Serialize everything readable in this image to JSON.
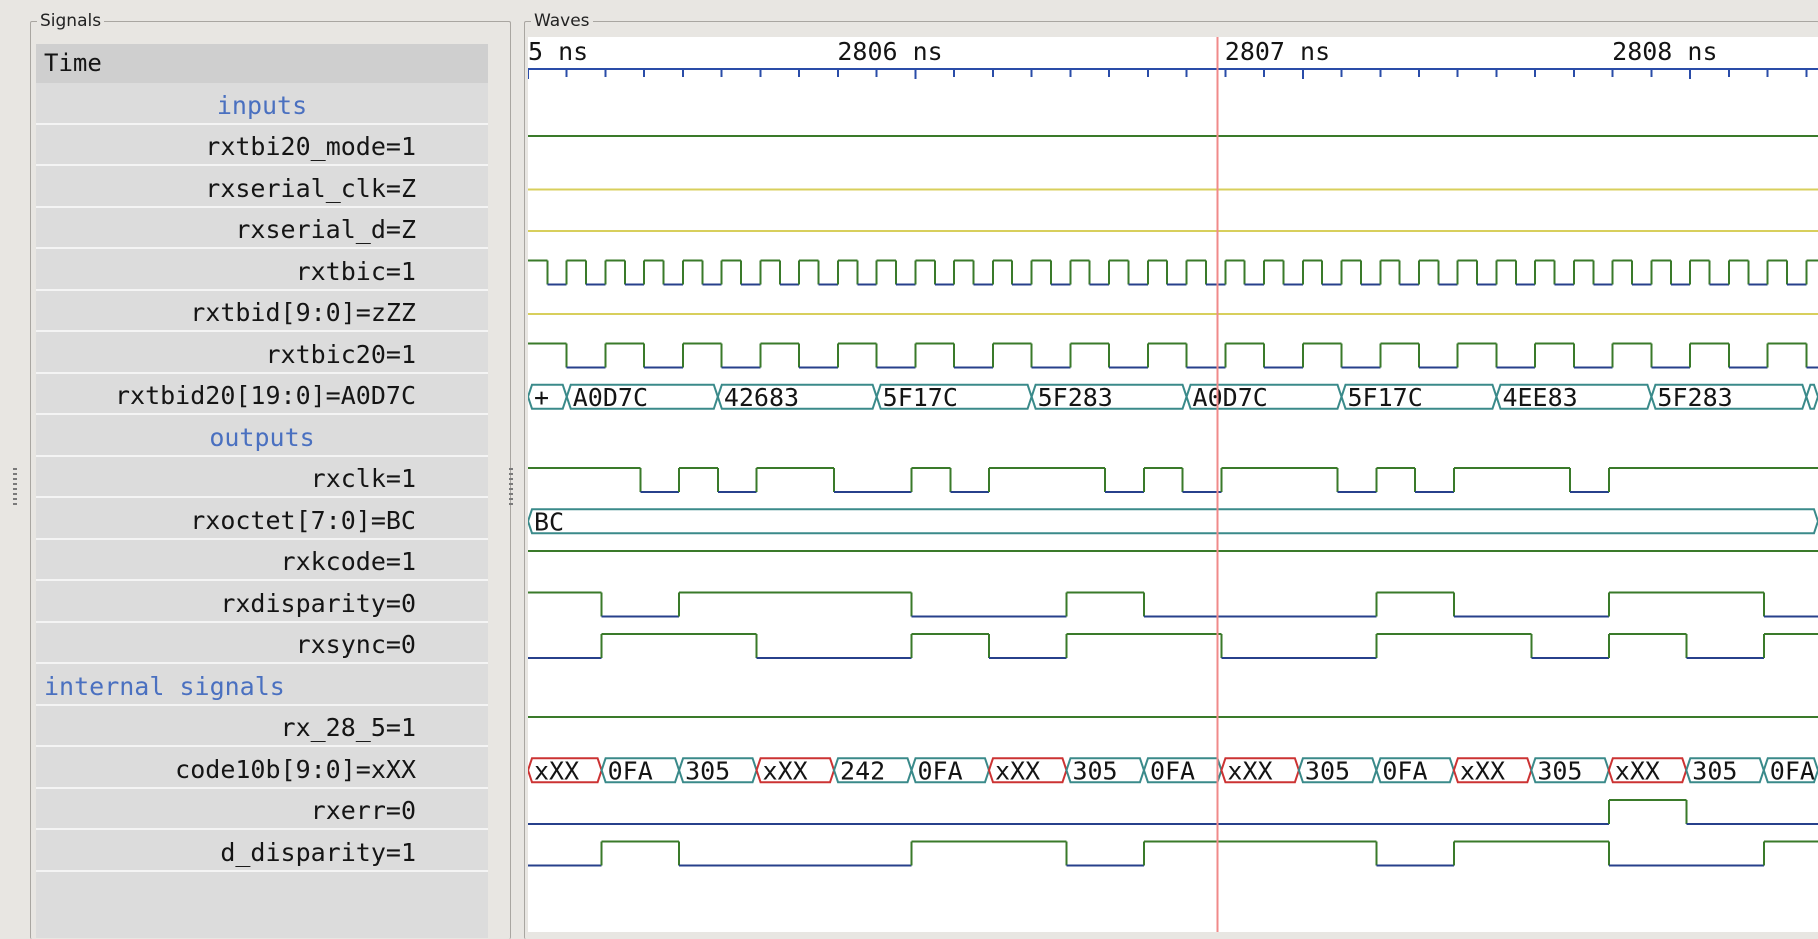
{
  "panels": {
    "signals_title": "Signals",
    "waves_title": "Waves"
  },
  "signals": [
    {
      "label": "Time",
      "kind": "time"
    },
    {
      "label": "inputs",
      "kind": "group"
    },
    {
      "label": "rxtbi20_mode=1",
      "kind": "signal"
    },
    {
      "label": "rxserial_clk=Z",
      "kind": "signal"
    },
    {
      "label": "rxserial_d=Z",
      "kind": "signal"
    },
    {
      "label": "rxtbic=1",
      "kind": "signal"
    },
    {
      "label": "rxtbid[9:0]=zZZ",
      "kind": "signal"
    },
    {
      "label": "rxtbic20=1",
      "kind": "signal"
    },
    {
      "label": "rxtbid20[19:0]=A0D7C",
      "kind": "signal"
    },
    {
      "label": "outputs",
      "kind": "group"
    },
    {
      "label": "rxclk=1",
      "kind": "signal"
    },
    {
      "label": "rxoctet[7:0]=BC",
      "kind": "signal"
    },
    {
      "label": "rxkcode=1",
      "kind": "signal"
    },
    {
      "label": "rxdisparity=0",
      "kind": "signal"
    },
    {
      "label": "rxsync=0",
      "kind": "signal"
    },
    {
      "label": "internal signals",
      "kind": "group-left"
    },
    {
      "label": "rx_28_5=1",
      "kind": "signal"
    },
    {
      "label": "code10b[9:0]=xXX",
      "kind": "signal"
    },
    {
      "label": "rxerr=0",
      "kind": "signal"
    },
    {
      "label": "d_disparity=1",
      "kind": "signal"
    }
  ],
  "timeline": {
    "major_labels": [
      {
        "text": "5 ns",
        "time": 2805
      },
      {
        "text": "2806 ns",
        "time": 2806
      },
      {
        "text": "2807 ns",
        "time": 2807
      },
      {
        "text": "2808 ns",
        "time": 2808
      }
    ],
    "view_start_ns": 2805.0,
    "view_end_ns": 2808.33,
    "cursor_ns": 2806.78,
    "minor_ticks_per_ns": 10
  },
  "waves": {
    "rxtbi20_mode": {
      "type": "const",
      "value": "1",
      "color": "#3a7a2a"
    },
    "rxserial_clk": {
      "type": "const",
      "value": "Z",
      "color": "#d8cf5c"
    },
    "rxserial_d": {
      "type": "const",
      "value": "Z",
      "color": "#d8cf5c"
    },
    "rxtbic": {
      "type": "clock",
      "start_level": 1,
      "half_period_ns": 0.05
    },
    "rxtbid": {
      "type": "const",
      "value": "Z",
      "color": "#d8cf5c"
    },
    "rxtbic20": {
      "type": "clock",
      "start_level": 1,
      "half_period_ns": 0.1
    },
    "rxtbid20": {
      "type": "bus",
      "color": "#3a8a8a",
      "segments": [
        {
          "start": 2805.0,
          "end": 2805.1,
          "value": "+"
        },
        {
          "start": 2805.1,
          "end": 2805.49,
          "value": "A0D7C"
        },
        {
          "start": 2805.49,
          "end": 2805.9,
          "value": "42683"
        },
        {
          "start": 2805.9,
          "end": 2806.3,
          "value": "5F17C"
        },
        {
          "start": 2806.3,
          "end": 2806.7,
          "value": "5F283"
        },
        {
          "start": 2806.7,
          "end": 2807.1,
          "value": "A0D7C"
        },
        {
          "start": 2807.1,
          "end": 2807.5,
          "value": "5F17C"
        },
        {
          "start": 2807.5,
          "end": 2807.9,
          "value": "4EE83"
        },
        {
          "start": 2807.9,
          "end": 2808.3,
          "value": "5F283"
        },
        {
          "start": 2808.3,
          "end": 2808.33,
          "value": ""
        }
      ]
    },
    "rxclk": {
      "type": "levels",
      "levels": [
        [
          2805.0,
          1
        ],
        [
          2805.29,
          0
        ],
        [
          2805.39,
          1
        ],
        [
          2805.49,
          0
        ],
        [
          2805.59,
          1
        ],
        [
          2805.79,
          0
        ],
        [
          2805.99,
          1
        ],
        [
          2806.09,
          0
        ],
        [
          2806.19,
          1
        ],
        [
          2806.49,
          0
        ],
        [
          2806.59,
          1
        ],
        [
          2806.69,
          0
        ],
        [
          2806.79,
          1
        ],
        [
          2807.09,
          0
        ],
        [
          2807.19,
          1
        ],
        [
          2807.29,
          0
        ],
        [
          2807.39,
          1
        ],
        [
          2807.69,
          0
        ],
        [
          2807.79,
          1
        ]
      ]
    },
    "rxoctet": {
      "type": "bus",
      "color": "#3a8a8a",
      "segments": [
        {
          "start": 2805.0,
          "end": 2808.33,
          "value": "BC"
        }
      ]
    },
    "rxkcode": {
      "type": "const",
      "value": "1",
      "color": "#3a7a2a"
    },
    "rxdisparity": {
      "type": "levels",
      "levels": [
        [
          2805.0,
          1
        ],
        [
          2805.19,
          0
        ],
        [
          2805.39,
          1
        ],
        [
          2805.99,
          0
        ],
        [
          2806.39,
          1
        ],
        [
          2806.59,
          0
        ],
        [
          2807.0,
          0
        ],
        [
          2807.19,
          1
        ],
        [
          2807.39,
          0
        ],
        [
          2807.79,
          1
        ],
        [
          2808.19,
          0
        ]
      ]
    },
    "rxsync": {
      "type": "levels",
      "levels": [
        [
          2805.0,
          0
        ],
        [
          2805.19,
          1
        ],
        [
          2805.59,
          0
        ],
        [
          2805.99,
          1
        ],
        [
          2806.19,
          0
        ],
        [
          2806.39,
          1
        ],
        [
          2806.79,
          0
        ],
        [
          2806.99,
          0
        ],
        [
          2807.19,
          1
        ],
        [
          2807.59,
          0
        ],
        [
          2807.79,
          1
        ],
        [
          2807.99,
          0
        ],
        [
          2808.19,
          1
        ]
      ]
    },
    "rx_28_5": {
      "type": "const",
      "value": "1",
      "color": "#3a7a2a"
    },
    "code10b": {
      "type": "bus",
      "color": "#3a8a8a",
      "x_color": "#cc3333",
      "segments": [
        {
          "start": 2805.0,
          "end": 2805.19,
          "value": "xXX",
          "x": true
        },
        {
          "start": 2805.19,
          "end": 2805.39,
          "value": "0FA"
        },
        {
          "start": 2805.39,
          "end": 2805.59,
          "value": "305"
        },
        {
          "start": 2805.59,
          "end": 2805.79,
          "value": "xXX",
          "x": true
        },
        {
          "start": 2805.79,
          "end": 2805.99,
          "value": "242"
        },
        {
          "start": 2805.99,
          "end": 2806.19,
          "value": "0FA"
        },
        {
          "start": 2806.19,
          "end": 2806.39,
          "value": "xXX",
          "x": true
        },
        {
          "start": 2806.39,
          "end": 2806.59,
          "value": "305"
        },
        {
          "start": 2806.59,
          "end": 2806.79,
          "value": "0FA"
        },
        {
          "start": 2806.79,
          "end": 2806.99,
          "value": "xXX",
          "x": true
        },
        {
          "start": 2806.99,
          "end": 2807.19,
          "value": "305"
        },
        {
          "start": 2807.19,
          "end": 2807.39,
          "value": "0FA"
        },
        {
          "start": 2807.39,
          "end": 2807.59,
          "value": "xXX",
          "x": true
        },
        {
          "start": 2807.59,
          "end": 2807.79,
          "value": "305"
        },
        {
          "start": 2807.79,
          "end": 2807.99,
          "value": "xXX",
          "x": true
        },
        {
          "start": 2807.99,
          "end": 2808.19,
          "value": "305"
        },
        {
          "start": 2808.19,
          "end": 2808.33,
          "value": "0FA"
        }
      ]
    },
    "rxerr": {
      "type": "levels",
      "levels": [
        [
          2805.0,
          0
        ],
        [
          2807.79,
          1
        ],
        [
          2807.99,
          0
        ]
      ]
    },
    "d_disparity": {
      "type": "levels",
      "levels": [
        [
          2805.0,
          0
        ],
        [
          2805.19,
          1
        ],
        [
          2805.39,
          0
        ],
        [
          2805.99,
          1
        ],
        [
          2806.39,
          0
        ],
        [
          2806.59,
          1
        ],
        [
          2806.99,
          1
        ],
        [
          2807.19,
          0
        ],
        [
          2807.39,
          1
        ],
        [
          2807.79,
          0
        ],
        [
          2808.19,
          1
        ]
      ]
    }
  },
  "colors": {
    "high": "#3a7a2a",
    "low": "#27408b",
    "z": "#d8cf5c",
    "cursor": "#f08a8a",
    "timeline": "#2a4ca8"
  }
}
